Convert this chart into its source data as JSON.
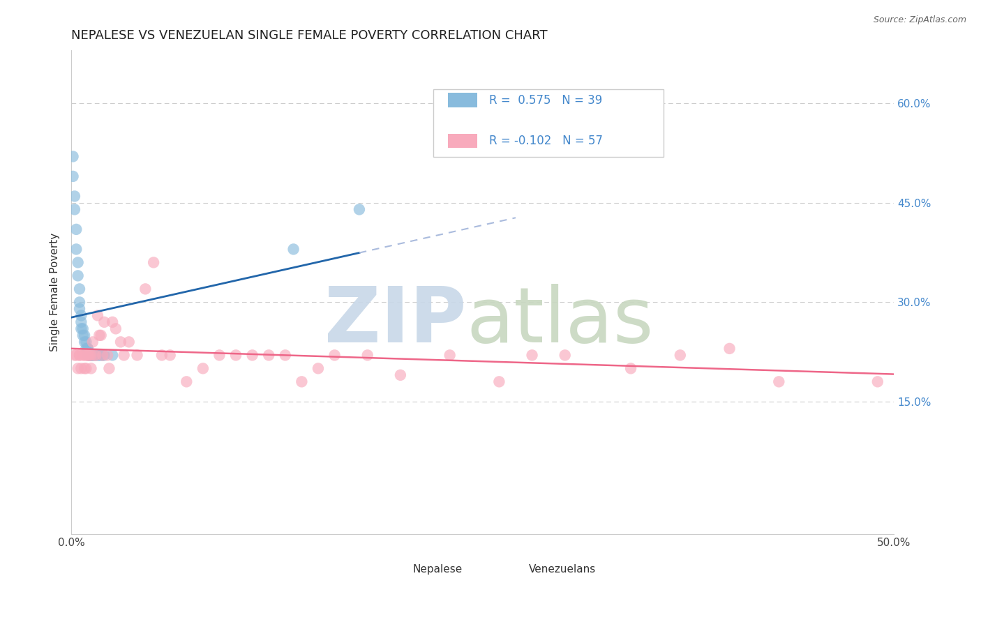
{
  "title": "NEPALESE VS VENEZUELAN SINGLE FEMALE POVERTY CORRELATION CHART",
  "source": "Source: ZipAtlas.com",
  "ylabel": "Single Female Poverty",
  "blue_color": "#88bbdd",
  "pink_color": "#f8aabc",
  "blue_line_color": "#2266aa",
  "pink_line_color": "#ee6688",
  "blue_dash_color": "#aabbdd",
  "nepalese_x": [
    0.001,
    0.001,
    0.002,
    0.002,
    0.003,
    0.003,
    0.004,
    0.004,
    0.005,
    0.005,
    0.005,
    0.006,
    0.006,
    0.006,
    0.007,
    0.007,
    0.008,
    0.008,
    0.009,
    0.009,
    0.01,
    0.01,
    0.01,
    0.011,
    0.011,
    0.012,
    0.012,
    0.013,
    0.013,
    0.014,
    0.015,
    0.016,
    0.017,
    0.018,
    0.019,
    0.02,
    0.025,
    0.135,
    0.175
  ],
  "nepalese_y": [
    0.52,
    0.49,
    0.46,
    0.44,
    0.41,
    0.38,
    0.36,
    0.34,
    0.32,
    0.3,
    0.29,
    0.28,
    0.27,
    0.26,
    0.26,
    0.25,
    0.25,
    0.24,
    0.24,
    0.23,
    0.23,
    0.23,
    0.22,
    0.22,
    0.22,
    0.22,
    0.22,
    0.22,
    0.22,
    0.22,
    0.22,
    0.22,
    0.22,
    0.22,
    0.22,
    0.22,
    0.22,
    0.38,
    0.44
  ],
  "venezuelan_x": [
    0.002,
    0.003,
    0.004,
    0.005,
    0.005,
    0.006,
    0.007,
    0.008,
    0.008,
    0.009,
    0.009,
    0.01,
    0.01,
    0.011,
    0.012,
    0.012,
    0.013,
    0.014,
    0.015,
    0.016,
    0.017,
    0.018,
    0.019,
    0.02,
    0.022,
    0.023,
    0.025,
    0.027,
    0.03,
    0.032,
    0.035,
    0.04,
    0.045,
    0.05,
    0.055,
    0.06,
    0.07,
    0.08,
    0.09,
    0.1,
    0.11,
    0.12,
    0.13,
    0.14,
    0.15,
    0.16,
    0.18,
    0.2,
    0.23,
    0.26,
    0.28,
    0.3,
    0.34,
    0.37,
    0.4,
    0.43,
    0.49
  ],
  "venezuelan_y": [
    0.22,
    0.22,
    0.2,
    0.22,
    0.22,
    0.2,
    0.22,
    0.22,
    0.2,
    0.22,
    0.2,
    0.22,
    0.22,
    0.22,
    0.2,
    0.22,
    0.24,
    0.22,
    0.22,
    0.28,
    0.25,
    0.25,
    0.22,
    0.27,
    0.22,
    0.2,
    0.27,
    0.26,
    0.24,
    0.22,
    0.24,
    0.22,
    0.32,
    0.36,
    0.22,
    0.22,
    0.18,
    0.2,
    0.22,
    0.22,
    0.22,
    0.22,
    0.22,
    0.18,
    0.2,
    0.22,
    0.22,
    0.19,
    0.22,
    0.18,
    0.22,
    0.22,
    0.2,
    0.22,
    0.23,
    0.18,
    0.18
  ],
  "xlim": [
    0.0,
    0.5
  ],
  "ylim": [
    -0.05,
    0.68
  ],
  "ytick_vals": [
    0.15,
    0.3,
    0.45,
    0.6
  ],
  "ytick_labels": [
    "15.0%",
    "30.0%",
    "45.0%",
    "60.0%"
  ]
}
